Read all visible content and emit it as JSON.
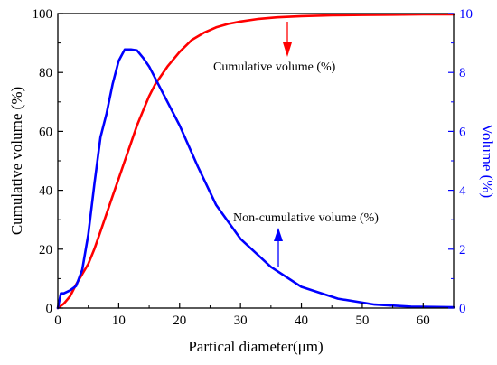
{
  "chart_data": {
    "type": "line",
    "xlabel": "Partical diameter(μm)",
    "ylabel_left": "Cumulative volume (%)",
    "ylabel_right": "Volume (%)",
    "xlim": [
      0,
      65
    ],
    "ylim_left": [
      0,
      100
    ],
    "ylim_right": [
      0,
      10
    ],
    "xticks": [
      0,
      10,
      20,
      30,
      40,
      50,
      60
    ],
    "yticks_left": [
      0,
      20,
      40,
      60,
      80,
      100
    ],
    "yticks_right": [
      0,
      2,
      4,
      6,
      8,
      10
    ],
    "grid": false,
    "series": [
      {
        "name": "Cumulative volume (%)",
        "axis": "left",
        "color": "#ff0000",
        "x": [
          0,
          1,
          2,
          3,
          4,
          5,
          6,
          7,
          8,
          9,
          10,
          11,
          12,
          13,
          14,
          15,
          16,
          18,
          20,
          22,
          24,
          26,
          28,
          30,
          33,
          36,
          40,
          45,
          50,
          55,
          60,
          65
        ],
        "y": [
          0,
          1.5,
          4,
          8,
          11.5,
          15,
          20,
          26,
          32,
          38,
          44,
          50,
          56,
          62,
          67,
          72,
          76,
          82,
          87,
          91,
          93.5,
          95.3,
          96.5,
          97.3,
          98.2,
          98.7,
          99.1,
          99.4,
          99.5,
          99.6,
          99.7,
          99.7
        ]
      },
      {
        "name": "Non-cumulative volume (%)",
        "axis": "right",
        "color": "#0000ff",
        "x": [
          0,
          0.5,
          1,
          1.5,
          2,
          3,
          4,
          5,
          6,
          7,
          8,
          9,
          10,
          11,
          12,
          13,
          14,
          15,
          17,
          20,
          23,
          26,
          30,
          35,
          40,
          46,
          52,
          58,
          65
        ],
        "y": [
          0,
          0.5,
          0.5,
          0.55,
          0.6,
          0.75,
          1.3,
          2.5,
          4.2,
          5.8,
          6.6,
          7.6,
          8.4,
          8.78,
          8.78,
          8.75,
          8.5,
          8.2,
          7.4,
          6.2,
          4.8,
          3.5,
          2.35,
          1.4,
          0.72,
          0.32,
          0.12,
          0.05,
          0.03
        ]
      }
    ],
    "annotations": [
      {
        "text": "Cumulative volume (%)",
        "color": "#ff0000"
      },
      {
        "text": "Non-cumulative volume (%)",
        "color": "#0000ff"
      }
    ]
  }
}
